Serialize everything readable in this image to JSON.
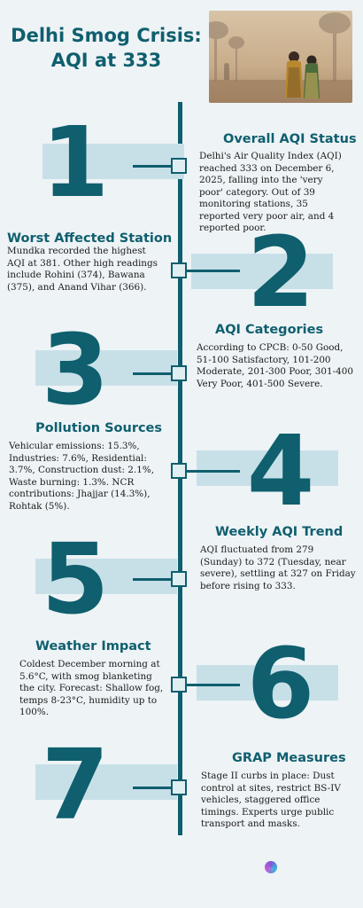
{
  "header": {
    "title_line1": "Delhi Smog Crisis:",
    "title_line2": "AQI at 333",
    "photo_icon": "smog-street-photo"
  },
  "sections": [
    {
      "number": "1",
      "title": "Overall AQI Status",
      "body": "Delhi's Air Quality Index (AQI) reached 333 on December 6, 2025, falling into the 'very poor' category. Out of 39 monitoring stations, 35 reported very poor air, and 4 reported poor."
    },
    {
      "number": "2",
      "title": "Worst Affected Station",
      "body": "Mundka recorded the highest AQI at 381. Other high readings include Rohini (374), Bawana (375), and Anand Vihar (366)."
    },
    {
      "number": "3",
      "title": "AQI Categories",
      "body": "According to CPCB: 0-50 Good, 51-100 Satisfactory, 101-200 Moderate, 201-300 Poor, 301-400 Very Poor, 401-500 Severe."
    },
    {
      "number": "4",
      "title": "Pollution Sources",
      "body": "Vehicular emissions: 15.3%, Industries: 7.6%, Residential: 3.7%, Construction dust: 2.1%, Waste burning: 1.3%. NCR contributions: Jhajjar (14.3%), Rohtak (5%)."
    },
    {
      "number": "5",
      "title": "Weekly AQI Trend",
      "body": "AQI fluctuated from 279 (Sunday) to 372 (Tuesday, near severe), settling at 327 on Friday before rising to 333."
    },
    {
      "number": "6",
      "title": "Weather Impact",
      "body": "Coldest December morning at 5.6°C, with smog blanketing the city. Forecast: Shallow fog, temps 8-23°C, humidity up to 100%."
    },
    {
      "number": "7",
      "title": "GRAP Measures",
      "body": "Stage II curbs in place: Dust control at sites, restrict BS-IV vehicles, staggered office timings. Experts urge public transport and masks."
    }
  ],
  "footer": {
    "logo_icon": "brand-logo-icon",
    "logo_text": ""
  },
  "colors": {
    "accent": "#0f5f6e",
    "band": "#c7e0e8",
    "background": "#eef3f6"
  }
}
